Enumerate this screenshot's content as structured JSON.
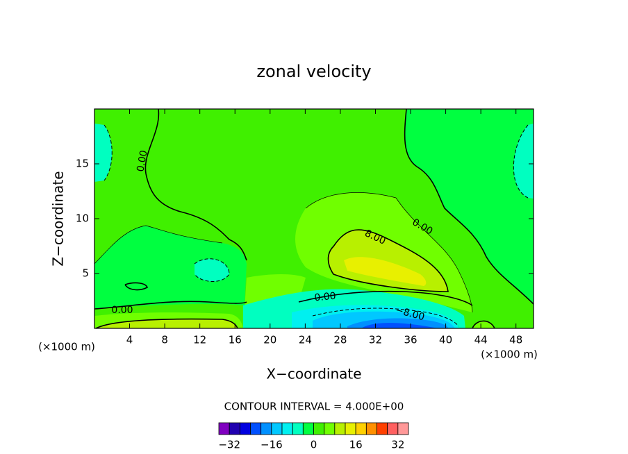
{
  "chart_data": {
    "type": "contour",
    "title": "zonal velocity",
    "x_label": "X−coordinate",
    "y_label": "Z−coordinate",
    "x_unit": "(×1000 m)",
    "y_unit": "(×1000 m)",
    "xlim": [
      0,
      50
    ],
    "xticks": [
      4,
      8,
      12,
      16,
      20,
      24,
      28,
      32,
      36,
      40,
      44,
      48
    ],
    "ylim": [
      0,
      20
    ],
    "yticks": [
      5,
      10,
      15
    ],
    "contour_labels": [
      "0.00",
      "0.00",
      "8.00",
      "0.00",
      "0.00",
      "−8.00"
    ],
    "contour_interval_text": "CONTOUR INTERVAL = 4.000E+00",
    "colorbar": {
      "levels": [
        -36,
        -32,
        -28,
        -24,
        -20,
        -16,
        -12,
        -8,
        -4,
        0,
        4,
        8,
        12,
        16,
        20,
        24,
        28,
        32,
        36
      ],
      "colors": [
        "#8000c0",
        "#2000b0",
        "#0000e0",
        "#0050ff",
        "#0090ff",
        "#00c8ff",
        "#00f0f0",
        "#00ffc0",
        "#00ff40",
        "#40f000",
        "#70ff00",
        "#b8f000",
        "#e8f000",
        "#ffd000",
        "#ff9000",
        "#ff4000",
        "#ff6060",
        "#ff9898"
      ],
      "ticks": [
        {
          "value": -32,
          "label": "−32"
        },
        {
          "value": -16,
          "label": "−16"
        },
        0,
        16,
        32
      ]
    }
  }
}
